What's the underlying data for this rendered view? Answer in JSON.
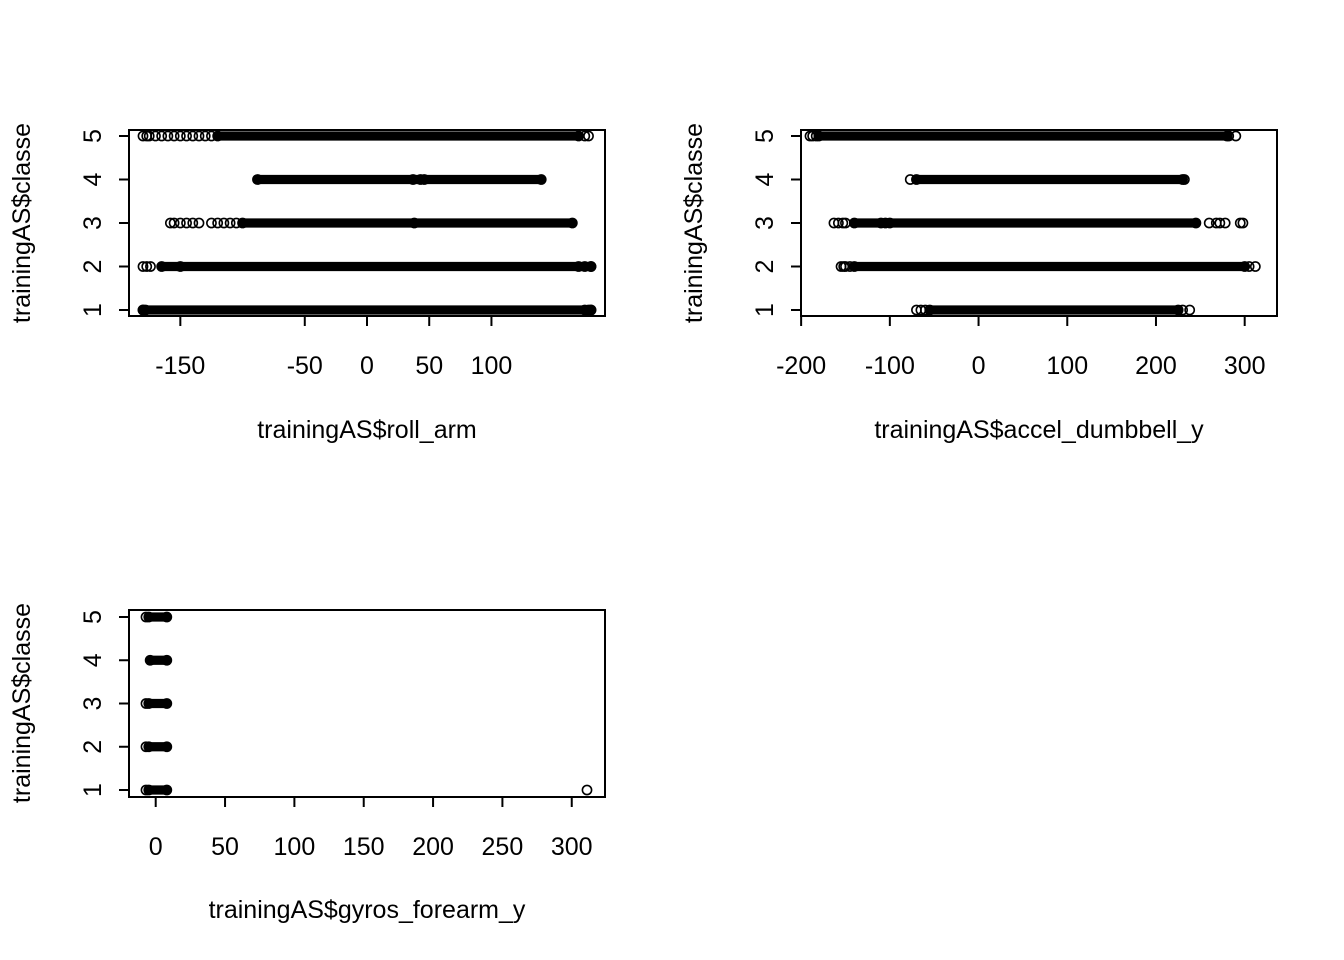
{
  "chart_data": [
    {
      "type": "scatter",
      "title": "",
      "xlabel": "trainingAS$roll_arm",
      "ylabel": "trainingAS$classe",
      "x_ticks": [
        -150,
        -50,
        0,
        50,
        100
      ],
      "y_ticks": [
        1,
        2,
        3,
        4,
        5
      ],
      "xlim": [
        -180,
        180
      ],
      "ylim": [
        1,
        5
      ],
      "grid": false,
      "rows": [
        {
          "y": 1,
          "min": -180,
          "max": 180,
          "scatter": [
            -180,
            -178,
            175,
            178,
            180
          ]
        },
        {
          "y": 2,
          "min": -165,
          "max": 180,
          "scatter": [
            -180,
            -177,
            -174,
            -150,
            170,
            175,
            180
          ]
        },
        {
          "y": 3,
          "min": -100,
          "max": 165,
          "scatter": [
            -158,
            -155,
            -150,
            -145,
            -140,
            -135,
            -125,
            -120,
            -115,
            -110,
            -105,
            38
          ]
        },
        {
          "y": 4,
          "min": -88,
          "max": 140,
          "scatter": [
            37,
            43,
            46
          ]
        },
        {
          "y": 5,
          "min": -120,
          "max": 170,
          "scatter": [
            -180,
            -177,
            -175,
            -170,
            -165,
            -160,
            -155,
            -150,
            -145,
            -140,
            -135,
            -130,
            -125,
            175,
            178
          ]
        }
      ]
    },
    {
      "type": "scatter",
      "title": "",
      "xlabel": "trainingAS$accel_dumbbell_y",
      "ylabel": "trainingAS$classe",
      "x_ticks": [
        -200,
        -100,
        0,
        100,
        200,
        300
      ],
      "y_ticks": [
        1,
        2,
        3,
        4,
        5
      ],
      "xlim": [
        -190,
        315
      ],
      "ylim": [
        1,
        5
      ],
      "grid": false,
      "rows": [
        {
          "y": 1,
          "min": -55,
          "max": 225,
          "scatter": [
            -70,
            -65,
            -60,
            230,
            238
          ]
        },
        {
          "y": 2,
          "min": -140,
          "max": 300,
          "scatter": [
            -155,
            -152,
            -150,
            -145,
            305,
            312
          ]
        },
        {
          "y": 3,
          "min": -140,
          "max": 245,
          "scatter": [
            -163,
            -158,
            -153,
            -150,
            -110,
            -105,
            -100,
            260,
            268,
            272,
            278,
            295,
            298
          ]
        },
        {
          "y": 4,
          "min": -70,
          "max": 230,
          "scatter": [
            -77,
            232
          ]
        },
        {
          "y": 5,
          "min": -180,
          "max": 280,
          "scatter": [
            -190,
            -187,
            -183,
            282,
            290
          ]
        }
      ]
    },
    {
      "type": "scatter",
      "title": "",
      "xlabel": "trainingAS$gyros_forearm_y",
      "ylabel": "trainingAS$classe",
      "x_ticks": [
        0,
        50,
        100,
        150,
        200,
        250,
        300
      ],
      "y_ticks": [
        1,
        2,
        3,
        4,
        5
      ],
      "xlim": [
        -7,
        311
      ],
      "ylim": [
        1,
        5
      ],
      "grid": false,
      "rows": [
        {
          "y": 1,
          "min": -5,
          "max": 8,
          "scatter": [
            -7,
            311
          ]
        },
        {
          "y": 2,
          "min": -5,
          "max": 8,
          "scatter": [
            -7
          ]
        },
        {
          "y": 3,
          "min": -5,
          "max": 8,
          "scatter": [
            -7
          ]
        },
        {
          "y": 4,
          "min": -4,
          "max": 8,
          "scatter": []
        },
        {
          "y": 5,
          "min": -5,
          "max": 8,
          "scatter": [
            -7
          ]
        }
      ]
    }
  ]
}
